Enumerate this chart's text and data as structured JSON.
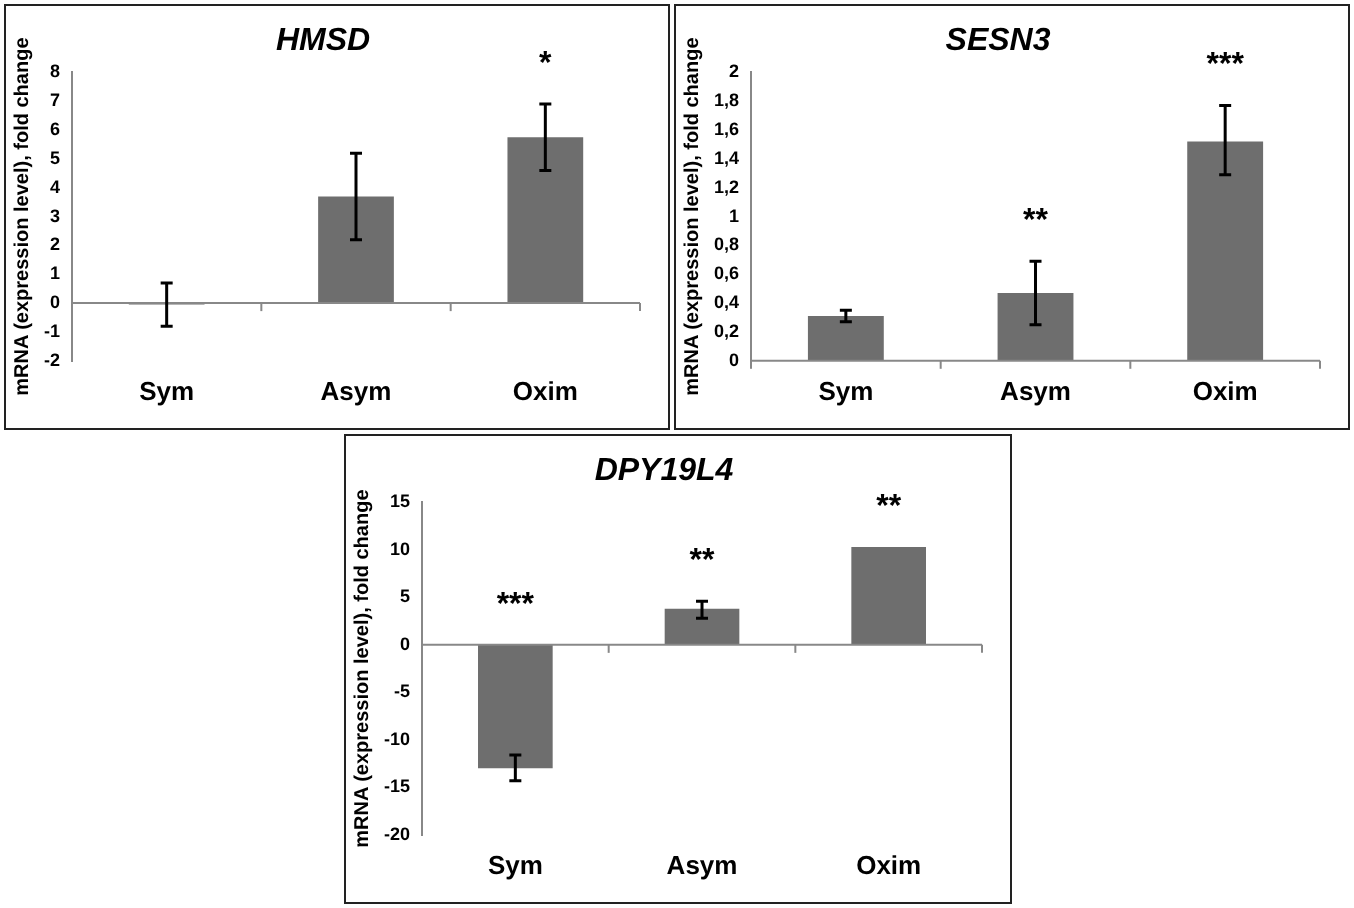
{
  "chart_data": [
    {
      "type": "bar",
      "title": "HMSD",
      "ylabel": "mRNA (expression level), fold change",
      "categories": [
        "Sym",
        "Asym",
        "Oxim"
      ],
      "values": [
        -0.05,
        3.7,
        5.75
      ],
      "errors": [
        [
          -0.8,
          0.7
        ],
        [
          2.2,
          5.2
        ],
        [
          4.6,
          6.9
        ]
      ],
      "color": "#6e6e6e",
      "ylim": [
        -2,
        8
      ],
      "yticks": [
        -2,
        -1,
        0,
        1,
        2,
        3,
        4,
        5,
        6,
        7,
        8
      ],
      "value_labels": [
        null,
        null,
        "*"
      ]
    },
    {
      "type": "bar",
      "title": "SESN3",
      "ylabel": "mRNA (expression level), fold change",
      "categories": [
        "Sym",
        "Asym",
        "Oxim"
      ],
      "values": [
        0.31,
        0.47,
        1.52
      ],
      "errors": [
        [
          0.27,
          0.35
        ],
        [
          0.25,
          0.69
        ],
        [
          1.29,
          1.77
        ]
      ],
      "color": "#6e6e6e",
      "ylim": [
        0,
        2
      ],
      "yticks": [
        0,
        {
          "value": 0.2,
          "label": "0,2"
        },
        {
          "value": 0.4,
          "label": "0,4"
        },
        {
          "value": 0.6,
          "label": "0,6"
        },
        {
          "value": 0.8,
          "label": "0,8"
        },
        1,
        {
          "value": 1.2,
          "label": "1,2"
        },
        {
          "value": 1.4,
          "label": "1,4"
        },
        {
          "value": 1.6,
          "label": "1,6"
        },
        {
          "value": 1.8,
          "label": "1,8"
        },
        2
      ],
      "value_labels": [
        null,
        "**",
        "***"
      ]
    },
    {
      "type": "bar",
      "title": "DPY19L4",
      "ylabel": "mRNA (expression level), fold change",
      "categories": [
        "Sym",
        "Asym",
        "Oxim"
      ],
      "values": [
        -13,
        3.8,
        10.3
      ],
      "errors": [
        [
          -14.3,
          -11.6
        ],
        [
          2.8,
          4.6
        ],
        null
      ],
      "color": "#6e6e6e",
      "ylim": [
        -20,
        15
      ],
      "yticks": [
        -20,
        -15,
        -10,
        -5,
        0,
        5,
        10,
        15
      ],
      "value_labels": [
        "***",
        "**",
        "**"
      ]
    }
  ]
}
